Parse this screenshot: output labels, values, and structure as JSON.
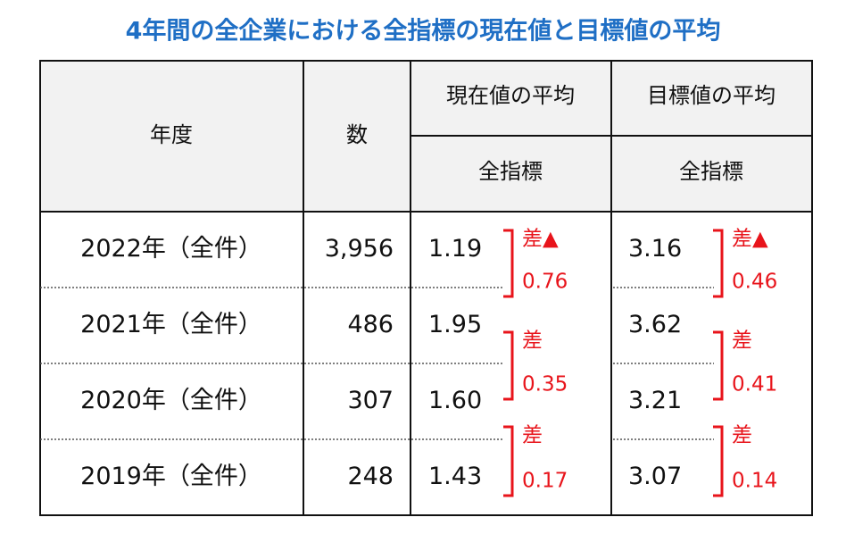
{
  "title": "4年間の全企業における全指標の現在値と目標値の平均",
  "table": {
    "headers": {
      "year": "年度",
      "count": "数",
      "current": "現在値の平均",
      "target": "目標値の平均",
      "current_sub": "全指標",
      "target_sub": "全指標"
    },
    "rows": [
      [
        "2022年（全件）",
        "3,956",
        "1.19",
        "3.16"
      ],
      [
        "2021年（全件）",
        "486",
        "1.95",
        "3.62"
      ],
      [
        "2020年（全件）",
        "307",
        "1.60",
        "3.21"
      ],
      [
        "2019年（全件）",
        "248",
        "1.43",
        "3.07"
      ]
    ]
  },
  "annotations": {
    "current": [
      {
        "label": "差▲",
        "value": "0.76"
      },
      {
        "label": "差",
        "value": "0.35"
      },
      {
        "label": "差",
        "value": "0.17"
      }
    ],
    "target": [
      {
        "label": "差▲",
        "value": "0.46"
      },
      {
        "label": "差",
        "value": "0.41"
      },
      {
        "label": "差",
        "value": "0.14"
      }
    ]
  }
}
